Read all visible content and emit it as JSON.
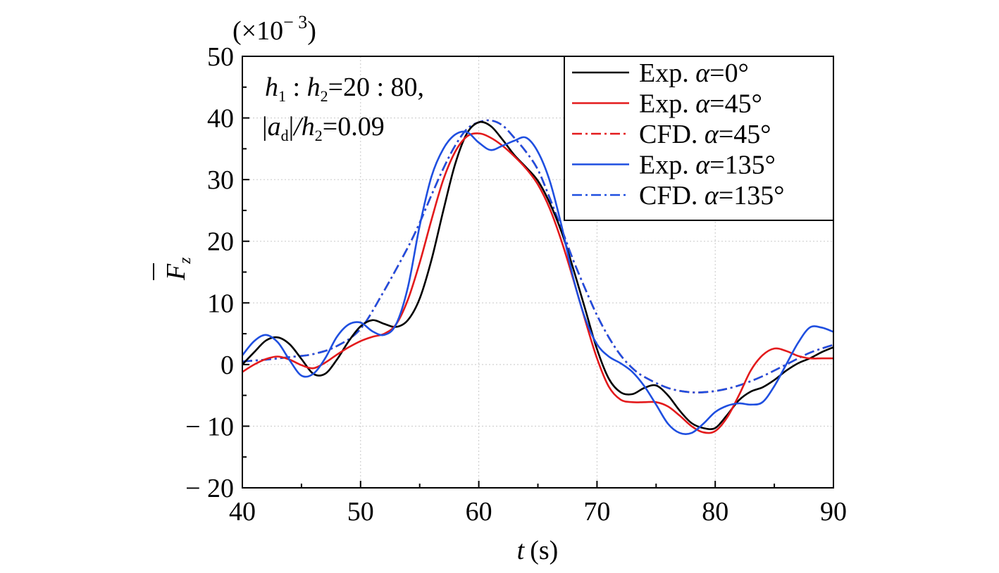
{
  "chart_data": {
    "type": "line",
    "xlabel": "t (s)",
    "xlabel_var": "t",
    "xlabel_unit": "(s)",
    "ylabel": "F_z",
    "ylabel_main": "F",
    "ylabel_sub": "z",
    "y_multiplier": "(×10⁻³)",
    "y_multiplier_base": "(×10",
    "y_multiplier_exp": "− 3",
    "y_multiplier_close": ")",
    "xlim": [
      40,
      90
    ],
    "ylim": [
      -20,
      50
    ],
    "x_ticks": [
      40,
      50,
      60,
      70,
      80,
      90
    ],
    "x_tick_labels": [
      "40",
      "50",
      "60",
      "70",
      "80",
      "90"
    ],
    "y_ticks": [
      -20,
      -10,
      0,
      10,
      20,
      30,
      40,
      50
    ],
    "y_tick_labels": [
      "− 20",
      "− 10",
      "0",
      "10",
      "20",
      "30",
      "40",
      "50"
    ],
    "grid": true,
    "legend_position": "top-right",
    "annotation": {
      "line1": {
        "h": "h",
        "sub1": "1",
        "sep": " : ",
        "h2": "h",
        "sub2": "2",
        "rest": "=20 : 80,"
      },
      "line2": {
        "bar_open": "|",
        "a": "a",
        "sub": "d",
        "bar_close": "|",
        "slash_h": "/h",
        "sub2": "2",
        "rest": "=0.09"
      }
    },
    "series": [
      {
        "name": "Exp. α=0°",
        "label_prefix": "Exp. ",
        "label_var": "α",
        "label_suffix": "=0°",
        "color": "#000000",
        "dash": "solid",
        "x": [
          40,
          41,
          42,
          43,
          44,
          45,
          46,
          47,
          48,
          49,
          50,
          51,
          52,
          53,
          54,
          55,
          56,
          57,
          58,
          59,
          60,
          61,
          62,
          63,
          64,
          65,
          66,
          67,
          68,
          69,
          70,
          71,
          72,
          73,
          74,
          75,
          76,
          77,
          78,
          79,
          80,
          81,
          82,
          83,
          84,
          85,
          86,
          87,
          88,
          89,
          90
        ],
        "y": [
          0.0,
          2.0,
          3.9,
          4.4,
          3.3,
          0.9,
          -1.5,
          -1.5,
          0.8,
          3.8,
          6.2,
          7.2,
          6.6,
          6.1,
          7.2,
          10.7,
          17.0,
          25.0,
          32.5,
          37.5,
          39.3,
          38.7,
          36.5,
          34.0,
          32.0,
          29.8,
          26.2,
          21.5,
          15.5,
          9.0,
          2.5,
          -2.3,
          -4.5,
          -4.8,
          -3.8,
          -3.4,
          -5.0,
          -7.5,
          -9.5,
          -10.3,
          -10.3,
          -8.2,
          -5.8,
          -4.4,
          -3.7,
          -2.5,
          -1.0,
          0.2,
          1.0,
          2.0,
          2.8
        ]
      },
      {
        "name": "Exp. α=45°",
        "label_prefix": "Exp. ",
        "label_var": "α",
        "label_suffix": "=45°",
        "color": "#e31a1c",
        "dash": "solid",
        "x": [
          40,
          41,
          42,
          43,
          44,
          45,
          46,
          47,
          48,
          49,
          50,
          51,
          52,
          53,
          54,
          55,
          56,
          57,
          58,
          59,
          60,
          61,
          62,
          63,
          64,
          65,
          66,
          67,
          68,
          69,
          70,
          71,
          72,
          73,
          74,
          75,
          76,
          77,
          78,
          79,
          80,
          81,
          82,
          83,
          84,
          85,
          86,
          87,
          88,
          89,
          90
        ],
        "y": [
          -1.2,
          0.0,
          0.9,
          1.3,
          0.8,
          -0.1,
          -0.6,
          0.3,
          1.6,
          2.8,
          3.8,
          4.5,
          5.0,
          6.5,
          10.5,
          16.5,
          23.5,
          30.0,
          34.5,
          37.0,
          37.5,
          36.8,
          35.5,
          33.8,
          31.8,
          29.2,
          25.3,
          20.0,
          13.8,
          7.2,
          1.0,
          -3.6,
          -5.7,
          -6.1,
          -6.1,
          -6.1,
          -6.8,
          -8.3,
          -10.0,
          -11.0,
          -10.8,
          -8.6,
          -5.0,
          -1.0,
          1.5,
          2.6,
          2.2,
          1.4,
          1.0,
          1.0,
          1.0
        ]
      },
      {
        "name": "CFD. α=45°",
        "label_prefix": "CFD. ",
        "label_var": "α",
        "label_suffix": "=45°",
        "color": "#e31a1c",
        "dash": "dashdot",
        "x": [
          40,
          42,
          44,
          46,
          48,
          50,
          52,
          54,
          55,
          56,
          57,
          58,
          59,
          60,
          61,
          62,
          63,
          64,
          65,
          66,
          67,
          68,
          69,
          70,
          71,
          72,
          73,
          74,
          76,
          78,
          80,
          82,
          84,
          86,
          88,
          90
        ],
        "y": [
          0.5,
          0.8,
          1.2,
          1.7,
          3.0,
          5.8,
          12.0,
          19.0,
          23.0,
          27.5,
          31.8,
          35.5,
          38.2,
          39.3,
          39.6,
          38.8,
          36.8,
          34.5,
          31.6,
          27.0,
          22.0,
          16.9,
          12.3,
          8.0,
          4.4,
          1.5,
          -0.6,
          -2.0,
          -3.8,
          -4.5,
          -4.3,
          -3.4,
          -1.9,
          0.0,
          1.9,
          3.2
        ]
      },
      {
        "name": "Exp. α=135°",
        "label_prefix": "Exp. ",
        "label_var": "α",
        "label_suffix": "=135°",
        "color": "#1f4fe0",
        "dash": "solid",
        "x": [
          40,
          41,
          42,
          43,
          44,
          45,
          46,
          47,
          48,
          49,
          50,
          51,
          52,
          53,
          54,
          55,
          56,
          57,
          58,
          59,
          60,
          61,
          62,
          63,
          64,
          65,
          66,
          67,
          68,
          69,
          70,
          71,
          72,
          73,
          74,
          75,
          76,
          77,
          78,
          79,
          80,
          81,
          82,
          83,
          84,
          85,
          86,
          87,
          88,
          89,
          90
        ],
        "y": [
          1.5,
          3.8,
          4.8,
          3.6,
          0.7,
          -1.8,
          -1.5,
          1.0,
          4.5,
          6.5,
          6.8,
          5.4,
          4.8,
          6.5,
          12.5,
          22.5,
          30.5,
          35.0,
          37.3,
          37.7,
          36.0,
          34.8,
          35.5,
          36.3,
          36.8,
          34.5,
          29.8,
          22.5,
          14.0,
          7.5,
          3.3,
          1.3,
          0.2,
          -1.2,
          -3.5,
          -6.5,
          -9.6,
          -11.1,
          -11.1,
          -9.6,
          -7.7,
          -6.7,
          -6.3,
          -6.5,
          -6.1,
          -3.5,
          0.0,
          3.5,
          6.0,
          6.0,
          5.3
        ]
      },
      {
        "name": "CFD. α=135°",
        "label_prefix": "CFD. ",
        "label_var": "α",
        "label_suffix": "=135°",
        "color": "#1f4fe0",
        "dash": "dashdot",
        "x": [
          40,
          42,
          44,
          46,
          48,
          50,
          52,
          54,
          55,
          56,
          57,
          58,
          59,
          60,
          61,
          62,
          63,
          64,
          65,
          66,
          67,
          68,
          69,
          70,
          71,
          72,
          73,
          74,
          76,
          78,
          80,
          82,
          84,
          86,
          88,
          90
        ],
        "y": [
          0.5,
          0.8,
          1.2,
          1.7,
          3.0,
          5.8,
          12.0,
          19.0,
          23.0,
          27.5,
          31.8,
          35.5,
          38.2,
          39.3,
          39.6,
          38.8,
          36.8,
          34.5,
          31.6,
          27.0,
          22.0,
          16.9,
          12.3,
          8.0,
          4.4,
          1.5,
          -0.6,
          -2.0,
          -3.8,
          -4.5,
          -4.3,
          -3.4,
          -1.9,
          0.0,
          1.9,
          3.2
        ]
      }
    ]
  }
}
